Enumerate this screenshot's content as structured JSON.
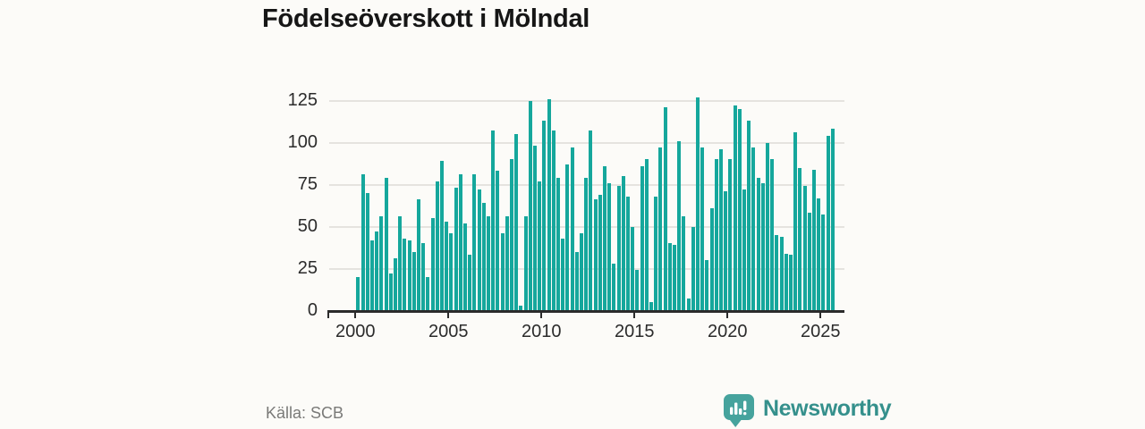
{
  "title": "Födelseöverskott i Mölndal",
  "source": "Källa: SCB",
  "branding": {
    "name": "Newsworthy",
    "icon": "newsworthy-speech-bubble-chart-icon"
  },
  "colors": {
    "bar": "#15a79c",
    "background": "#fcfbf8",
    "grid": "#e5e3df",
    "axis": "#2b2b2b",
    "title_text": "#161616",
    "muted_text": "#7a7a78",
    "brand_text": "#35908c",
    "brand_icon": "#46a39d"
  },
  "chart_data": {
    "type": "bar",
    "title": "Födelseöverskott i Mölndal",
    "xlabel": "",
    "ylabel": "",
    "frequency": "quarterly",
    "x_start": "2000 Q1",
    "x_end": "2025 Q3",
    "x": [
      "2000 Q1",
      "2000 Q2",
      "2000 Q3",
      "2000 Q4",
      "2001 Q1",
      "2001 Q2",
      "2001 Q3",
      "2001 Q4",
      "2002 Q1",
      "2002 Q2",
      "2002 Q3",
      "2002 Q4",
      "2003 Q1",
      "2003 Q2",
      "2003 Q3",
      "2003 Q4",
      "2004 Q1",
      "2004 Q2",
      "2004 Q3",
      "2004 Q4",
      "2005 Q1",
      "2005 Q2",
      "2005 Q3",
      "2005 Q4",
      "2006 Q1",
      "2006 Q2",
      "2006 Q3",
      "2006 Q4",
      "2007 Q1",
      "2007 Q2",
      "2007 Q3",
      "2007 Q4",
      "2008 Q1",
      "2008 Q2",
      "2008 Q3",
      "2008 Q4",
      "2009 Q1",
      "2009 Q2",
      "2009 Q3",
      "2009 Q4",
      "2010 Q1",
      "2010 Q2",
      "2010 Q3",
      "2010 Q4",
      "2011 Q1",
      "2011 Q2",
      "2011 Q3",
      "2011 Q4",
      "2012 Q1",
      "2012 Q2",
      "2012 Q3",
      "2012 Q4",
      "2013 Q1",
      "2013 Q2",
      "2013 Q3",
      "2013 Q4",
      "2014 Q1",
      "2014 Q2",
      "2014 Q3",
      "2014 Q4",
      "2015 Q1",
      "2015 Q2",
      "2015 Q3",
      "2015 Q4",
      "2016 Q1",
      "2016 Q2",
      "2016 Q3",
      "2016 Q4",
      "2017 Q1",
      "2017 Q2",
      "2017 Q3",
      "2017 Q4",
      "2018 Q1",
      "2018 Q2",
      "2018 Q3",
      "2018 Q4",
      "2019 Q1",
      "2019 Q2",
      "2019 Q3",
      "2019 Q4",
      "2020 Q1",
      "2020 Q2",
      "2020 Q3",
      "2020 Q4",
      "2021 Q1",
      "2021 Q2",
      "2021 Q3",
      "2021 Q4",
      "2022 Q1",
      "2022 Q2",
      "2022 Q3",
      "2022 Q4",
      "2023 Q1",
      "2023 Q2",
      "2023 Q3",
      "2023 Q4",
      "2024 Q1",
      "2024 Q2",
      "2024 Q3",
      "2024 Q4",
      "2025 Q1",
      "2025 Q2",
      "2025 Q3"
    ],
    "values": [
      20,
      81,
      70,
      42,
      47,
      56,
      79,
      22,
      31,
      56,
      43,
      42,
      35,
      66,
      40,
      20,
      55,
      77,
      89,
      53,
      46,
      73,
      81,
      52,
      33,
      81,
      72,
      64,
      56,
      107,
      83,
      46,
      56,
      90,
      105,
      3,
      56,
      125,
      98,
      77,
      113,
      126,
      107,
      79,
      43,
      87,
      97,
      35,
      46,
      79,
      107,
      66,
      69,
      86,
      76,
      28,
      74,
      80,
      68,
      50,
      24,
      86,
      90,
      5,
      68,
      97,
      121,
      40,
      39,
      101,
      56,
      7,
      50,
      127,
      97,
      30,
      61,
      90,
      96,
      71,
      90,
      122,
      120,
      72,
      113,
      97,
      79,
      76,
      100,
      90,
      45,
      44,
      34,
      33,
      106,
      85,
      74,
      58,
      84,
      67,
      57,
      104,
      108
    ],
    "y_ticks": [
      0,
      25,
      50,
      75,
      100,
      125
    ],
    "x_tick_labels": [
      "2000",
      "2005",
      "2010",
      "2015",
      "2020",
      "2025"
    ],
    "ylim": [
      0,
      125
    ],
    "grid": true,
    "legend": false
  }
}
